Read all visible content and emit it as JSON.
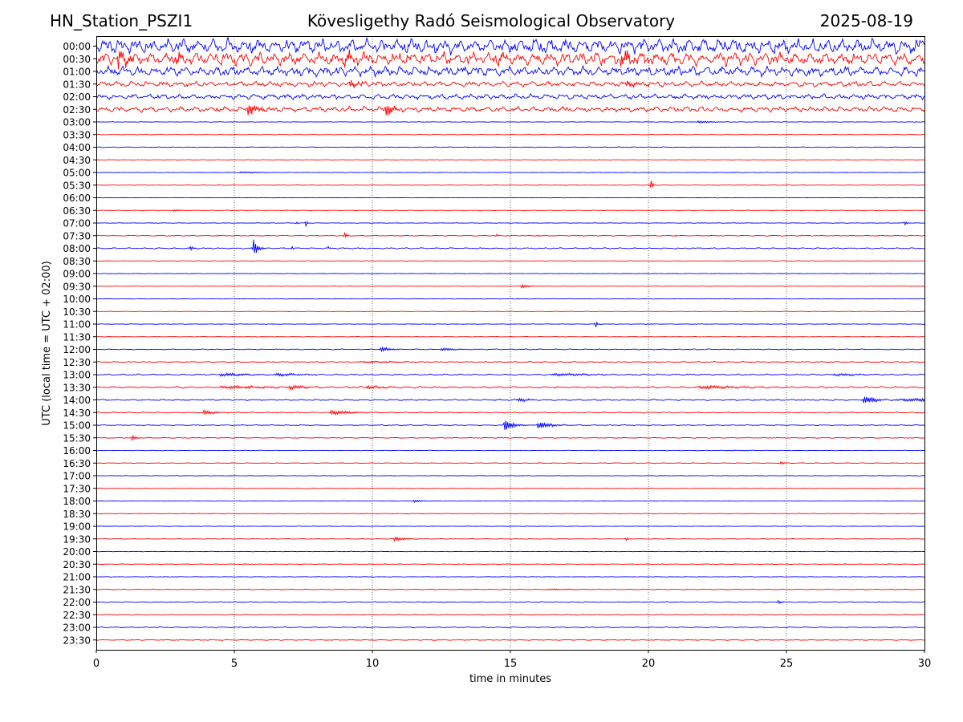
{
  "header": {
    "station": "HN_Station_PSZI1",
    "observatory": "Kövesligethy Radó Seismological Observatory",
    "date": "2025-08-19"
  },
  "chart_data": {
    "type": "line",
    "title": "Kövesligethy Radó Seismological Observatory",
    "xlabel": "time in minutes",
    "ylabel": "UTC (local time = UTC + 02:00)",
    "xlim": [
      0,
      30
    ],
    "xticks": [
      "0",
      "5",
      "10",
      "15",
      "20",
      "25",
      "30"
    ],
    "x_gridlines": [
      5,
      10,
      15,
      20,
      25
    ],
    "grid": "vertical dotted at 5-minute intervals",
    "rows": [
      "00:00",
      "00:30",
      "01:00",
      "01:30",
      "02:00",
      "02:30",
      "03:00",
      "03:30",
      "04:00",
      "04:30",
      "05:00",
      "05:30",
      "06:00",
      "06:30",
      "07:00",
      "07:30",
      "08:00",
      "08:30",
      "09:00",
      "09:30",
      "10:00",
      "10:30",
      "11:00",
      "11:30",
      "12:00",
      "12:30",
      "13:00",
      "13:30",
      "14:00",
      "14:30",
      "15:00",
      "15:30",
      "16:00",
      "16:30",
      "17:00",
      "17:30",
      "18:00",
      "18:30",
      "19:00",
      "19:30",
      "20:00",
      "20:30",
      "21:00",
      "21:30",
      "22:00",
      "22:30",
      "23:00",
      "23:30"
    ],
    "colors": {
      "even_rows": "#0000ff",
      "odd_rows": "#ff0000"
    },
    "noise_level": [
      0.85,
      0.75,
      0.55,
      0.3,
      0.3,
      0.3,
      0.03,
      0.025,
      0.04,
      0.02,
      0.03,
      0.025,
      0.02,
      0.02,
      0.03,
      0.05,
      0.07,
      0.02,
      0.025,
      0.02,
      0.03,
      0.02,
      0.03,
      0.02,
      0.05,
      0.06,
      0.08,
      0.1,
      0.08,
      0.06,
      0.05,
      0.05,
      0.03,
      0.03,
      0.03,
      0.025,
      0.03,
      0.025,
      0.025,
      0.03,
      0.03,
      0.03,
      0.03,
      0.04,
      0.05,
      0.06,
      0.06,
      0.05
    ],
    "events": [
      {
        "row": 1,
        "x": 0.8,
        "amp": 1.2,
        "dur": 0.3
      },
      {
        "row": 1,
        "x": 2.9,
        "amp": 0.7,
        "dur": 0.3
      },
      {
        "row": 1,
        "x": 9.0,
        "amp": 0.7,
        "dur": 0.4
      },
      {
        "row": 1,
        "x": 14.5,
        "amp": 0.6,
        "dur": 0.3
      },
      {
        "row": 1,
        "x": 19.0,
        "amp": 0.9,
        "dur": 0.4
      },
      {
        "row": 2,
        "x": 13.3,
        "amp": 0.8,
        "dur": 0.3
      },
      {
        "row": 3,
        "x": 9.2,
        "amp": 0.5,
        "dur": 0.6
      },
      {
        "row": 3,
        "x": 19.2,
        "amp": 0.6,
        "dur": 0.5
      },
      {
        "row": 5,
        "x": 5.5,
        "amp": 0.9,
        "dur": 0.4
      },
      {
        "row": 5,
        "x": 10.5,
        "amp": 1.1,
        "dur": 0.2
      },
      {
        "row": 6,
        "x": 21.8,
        "amp": 0.2,
        "dur": 0.5
      },
      {
        "row": 10,
        "x": 5.2,
        "amp": 0.2,
        "dur": 0.6
      },
      {
        "row": 11,
        "x": 20.1,
        "amp": 0.9,
        "dur": 0.05
      },
      {
        "row": 13,
        "x": 2.8,
        "amp": 0.15,
        "dur": 0.4
      },
      {
        "row": 14,
        "x": 7.25,
        "amp": 0.9,
        "dur": 0.04
      },
      {
        "row": 14,
        "x": 7.6,
        "amp": 0.5,
        "dur": 0.04
      },
      {
        "row": 14,
        "x": 29.3,
        "amp": 0.4,
        "dur": 0.05
      },
      {
        "row": 15,
        "x": 4.4,
        "amp": 0.4,
        "dur": 0.04
      },
      {
        "row": 15,
        "x": 9.0,
        "amp": 1.6,
        "dur": 0.06
      },
      {
        "row": 15,
        "x": 14.5,
        "amp": 0.6,
        "dur": 0.05
      },
      {
        "row": 15,
        "x": 16.0,
        "amp": 0.4,
        "dur": 0.05
      },
      {
        "row": 15,
        "x": 21.0,
        "amp": 0.4,
        "dur": 0.05
      },
      {
        "row": 16,
        "x": 3.4,
        "amp": 0.5,
        "dur": 0.1
      },
      {
        "row": 16,
        "x": 5.7,
        "amp": 2.0,
        "dur": 0.12
      },
      {
        "row": 16,
        "x": 7.1,
        "amp": 0.4,
        "dur": 0.05
      },
      {
        "row": 16,
        "x": 8.4,
        "amp": 0.3,
        "dur": 0.05
      },
      {
        "row": 19,
        "x": 15.4,
        "amp": 0.25,
        "dur": 0.3
      },
      {
        "row": 22,
        "x": 18.1,
        "amp": 0.6,
        "dur": 0.05
      },
      {
        "row": 24,
        "x": 10.3,
        "amp": 0.45,
        "dur": 0.4
      },
      {
        "row": 24,
        "x": 12.5,
        "amp": 0.25,
        "dur": 0.8
      },
      {
        "row": 25,
        "x": 9.5,
        "amp": 0.3,
        "dur": 0.8
      },
      {
        "row": 26,
        "x": 4.5,
        "amp": 0.6,
        "dur": 0.5
      },
      {
        "row": 26,
        "x": 6.5,
        "amp": 0.5,
        "dur": 0.5
      },
      {
        "row": 26,
        "x": 16.5,
        "amp": 0.4,
        "dur": 0.8
      },
      {
        "row": 26,
        "x": 26.7,
        "amp": 0.5,
        "dur": 0.5
      },
      {
        "row": 27,
        "x": 4.5,
        "amp": 0.4,
        "dur": 1.0
      },
      {
        "row": 27,
        "x": 7.0,
        "amp": 1.0,
        "dur": 0.3
      },
      {
        "row": 27,
        "x": 9.8,
        "amp": 0.6,
        "dur": 0.4
      },
      {
        "row": 27,
        "x": 21.8,
        "amp": 0.5,
        "dur": 0.8
      },
      {
        "row": 28,
        "x": 15.3,
        "amp": 0.4,
        "dur": 0.6
      },
      {
        "row": 28,
        "x": 27.8,
        "amp": 0.8,
        "dur": 1.6
      },
      {
        "row": 29,
        "x": 3.9,
        "amp": 0.5,
        "dur": 0.3
      },
      {
        "row": 29,
        "x": 8.5,
        "amp": 0.4,
        "dur": 0.6
      },
      {
        "row": 30,
        "x": 14.8,
        "amp": 1.0,
        "dur": 0.3
      },
      {
        "row": 30,
        "x": 16.0,
        "amp": 0.5,
        "dur": 0.6
      },
      {
        "row": 31,
        "x": 1.3,
        "amp": 0.4,
        "dur": 0.15
      },
      {
        "row": 32,
        "x": 22.8,
        "amp": 0.2,
        "dur": 0.6
      },
      {
        "row": 33,
        "x": 24.8,
        "amp": 0.3,
        "dur": 0.1
      },
      {
        "row": 36,
        "x": 11.5,
        "amp": 0.25,
        "dur": 0.3
      },
      {
        "row": 39,
        "x": 10.8,
        "amp": 0.35,
        "dur": 0.6
      },
      {
        "row": 39,
        "x": 19.2,
        "amp": 0.3,
        "dur": 0.1
      },
      {
        "row": 43,
        "x": 16.3,
        "amp": 0.3,
        "dur": 0.5
      },
      {
        "row": 44,
        "x": 24.7,
        "amp": 0.3,
        "dur": 0.1
      },
      {
        "row": 45,
        "x": 9.1,
        "amp": 0.4,
        "dur": 0.2
      }
    ]
  }
}
